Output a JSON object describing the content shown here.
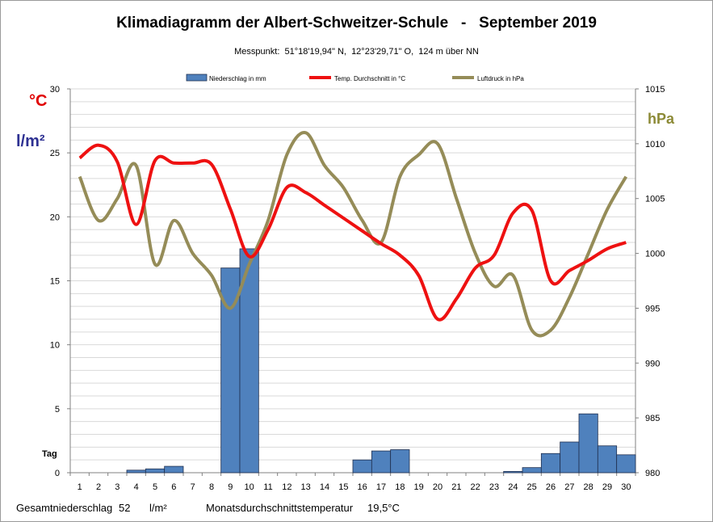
{
  "chart_data": {
    "type": "bar+line",
    "title": "Klimadiagramm der Albert-Schweitzer-Schule   -   September 2019",
    "subtitle": "Messpunkt:  51°18'19,94\" N,  12°23'29,71\" O,  124 m über NN",
    "x": [
      1,
      2,
      3,
      4,
      5,
      6,
      7,
      8,
      9,
      10,
      11,
      12,
      13,
      14,
      15,
      16,
      17,
      18,
      19,
      20,
      21,
      22,
      23,
      24,
      25,
      26,
      27,
      28,
      29,
      30
    ],
    "xlabel": "Tag",
    "y_left_units": [
      "°C",
      "l/m²"
    ],
    "y_left_range": [
      0,
      30
    ],
    "y_left_ticks": [
      0,
      5,
      10,
      15,
      20,
      25,
      30
    ],
    "y_right_unit": "hPa",
    "y_right_range": [
      980,
      1015
    ],
    "y_right_ticks": [
      980,
      985,
      990,
      995,
      1000,
      1005,
      1010,
      1015
    ],
    "grid": true,
    "legend_position": "top",
    "series": [
      {
        "name": "Niederschlag in mm",
        "kind": "bar",
        "axis": "left",
        "color": "#4f81bd",
        "values": [
          0,
          0,
          0,
          0.2,
          0.3,
          0.5,
          0,
          0,
          16,
          17.5,
          0,
          0,
          0,
          0,
          0,
          1,
          1.7,
          1.8,
          0,
          0,
          0,
          0,
          0,
          0.1,
          0.4,
          1.5,
          2.4,
          4.6,
          2.1,
          1.4
        ]
      },
      {
        "name": "Temp. Durchschnitt in °C",
        "kind": "line",
        "axis": "left",
        "color": "#ee1111",
        "values": [
          24.6,
          25.6,
          24.3,
          19.4,
          24.4,
          24.2,
          24.2,
          24.1,
          20.6,
          16.9,
          19.0,
          22.3,
          21.9,
          20.9,
          19.9,
          18.9,
          17.9,
          17.0,
          15.4,
          12.0,
          13.6,
          16.0,
          17.0,
          20.3,
          20.5,
          15.0,
          15.8,
          16.6,
          17.5,
          18.0
        ]
      },
      {
        "name": "Luftdruck in hPa",
        "kind": "line",
        "axis": "right",
        "color": "#958c58",
        "values": [
          1007,
          1003,
          1005,
          1008,
          999,
          1003,
          1000,
          998,
          995,
          999,
          1003,
          1009,
          1011,
          1008,
          1006,
          1003,
          1001,
          1007,
          1009,
          1010,
          1005,
          1000,
          997,
          998,
          993,
          993,
          996,
          1000,
          1004,
          1007
        ]
      }
    ]
  },
  "footer": {
    "total_precip_label": "Gesamtniederschlag",
    "total_precip_value": "52",
    "total_precip_unit": "l/m²",
    "avg_temp_label": "Monatsdurchschnittstemperatur",
    "avg_temp_value": "19,5°C"
  }
}
